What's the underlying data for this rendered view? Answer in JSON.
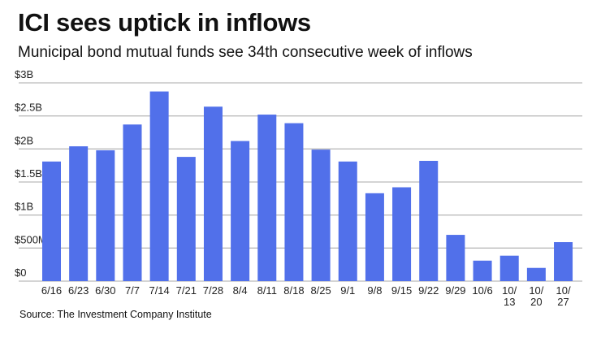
{
  "chart_data": {
    "type": "bar",
    "title": "ICI sees uptick in inflows",
    "subtitle": "Municipal bond mutual funds see 34th consecutive week of inflows",
    "xlabel": "",
    "ylabel": "",
    "categories": [
      "6/16",
      "6/23",
      "6/30",
      "7/7",
      "7/14",
      "7/21",
      "7/28",
      "8/4",
      "8/11",
      "8/18",
      "8/25",
      "9/1",
      "9/8",
      "9/15",
      "9/22",
      "9/29",
      "10/6",
      "10/\n13",
      "10/\n20",
      "10/\n27"
    ],
    "values": [
      1.81,
      2.04,
      1.98,
      2.37,
      2.87,
      1.88,
      2.64,
      2.12,
      2.52,
      2.39,
      1.99,
      1.81,
      1.33,
      1.42,
      1.82,
      0.7,
      0.31,
      0.385,
      0.2,
      0.59
    ],
    "units": "billions USD",
    "ylim": [
      0,
      3
    ],
    "yticks": [
      0,
      0.5,
      1,
      1.5,
      2,
      2.5,
      3
    ],
    "ytick_labels": [
      "$0",
      "$500M",
      "$1B",
      "$1.5B",
      "$2B",
      "$2.5B",
      "$3B"
    ],
    "grid": true,
    "bar_color": "#5170EA",
    "grid_color": "#BBBBBB",
    "source": "Source: The Investment Company Institute"
  }
}
